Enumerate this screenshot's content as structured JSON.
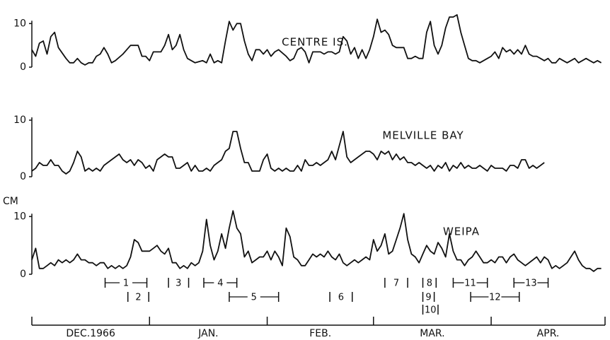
{
  "chart_data": [
    {
      "type": "line",
      "title": "CENTRE IS.",
      "xlim": [
        0,
        151
      ],
      "ylim": [
        0,
        12
      ],
      "yticks": [
        0,
        10
      ],
      "color": "#111",
      "x": [
        0,
        1,
        2,
        3,
        4,
        5,
        6,
        7,
        9,
        10,
        11,
        12,
        13,
        14,
        15,
        16,
        17,
        18,
        19,
        20,
        21,
        22,
        24,
        26,
        28,
        29,
        30,
        31,
        32,
        34,
        35,
        36,
        37,
        38,
        39,
        40,
        41,
        43,
        45,
        46,
        47,
        48,
        49,
        50,
        51,
        52,
        53,
        54,
        55,
        56,
        57,
        58,
        59,
        60,
        61,
        62,
        63,
        64,
        65,
        67,
        68,
        69,
        70,
        71,
        72,
        73,
        74,
        75,
        76,
        77,
        78,
        79,
        80,
        81,
        82,
        83,
        84,
        85,
        86,
        87,
        88,
        89,
        90,
        91,
        92,
        93,
        94,
        95,
        96,
        97,
        98,
        99,
        100,
        101,
        102,
        103,
        104,
        105,
        106,
        107,
        108,
        109,
        110,
        111,
        112,
        113,
        114,
        115,
        116,
        117,
        118,
        120,
        121,
        122,
        123,
        124,
        125,
        126,
        127,
        128,
        129,
        130,
        131,
        132,
        133,
        134,
        135,
        136,
        137,
        138,
        139,
        140,
        141,
        142,
        143,
        144,
        145,
        146,
        147,
        148,
        149,
        150
      ],
      "values": [
        4,
        2.5,
        5.5,
        6,
        3,
        7,
        8,
        4.5,
        2,
        1,
        1,
        2,
        1,
        0.5,
        1,
        1,
        2.5,
        3,
        4.5,
        3,
        1,
        1.5,
        3,
        5,
        5,
        2.5,
        2.5,
        1.5,
        3.5,
        3.5,
        5,
        7.5,
        4,
        5,
        7.5,
        4,
        2,
        1,
        1.5,
        1,
        3,
        1,
        1.5,
        1,
        6,
        10.5,
        8.5,
        10,
        10,
        6,
        3,
        1.5,
        4,
        4,
        3,
        4,
        2.5,
        3.5,
        4,
        2.5,
        1.5,
        2,
        4,
        4.5,
        3.5,
        1,
        3.5,
        3.5,
        3.5,
        3,
        3.5,
        3.5,
        3,
        3.5,
        7,
        6,
        3,
        4.5,
        2,
        4,
        2,
        4,
        7,
        11,
        8,
        8.5,
        7.5,
        5,
        4.5,
        4.5,
        4.5,
        2,
        2,
        2.5,
        2,
        2,
        8,
        10.5,
        5,
        3,
        5,
        9,
        11.5,
        11.5,
        12,
        8,
        5,
        2,
        1.5,
        1.5,
        1,
        2,
        2.5,
        3.5,
        2,
        4.5,
        3.5,
        4,
        3,
        4,
        3,
        5,
        3,
        2.5,
        2.5,
        2,
        1.5,
        2,
        1,
        1,
        2,
        1.5,
        1,
        1.5,
        2,
        1,
        1.5,
        2,
        1.5,
        1,
        1.5,
        1
      ]
    },
    {
      "type": "line",
      "title": "MELVILLE BAY",
      "xlim": [
        0,
        151
      ],
      "ylim": [
        0,
        12
      ],
      "yticks": [
        0,
        10
      ],
      "color": "#111",
      "x": [
        0,
        1,
        2,
        3,
        4,
        5,
        6,
        7,
        8,
        9,
        10,
        11,
        12,
        13,
        14,
        15,
        16,
        17,
        18,
        19,
        21,
        23,
        24,
        25,
        26,
        27,
        28,
        29,
        30,
        31,
        32,
        33,
        34,
        35,
        36,
        37,
        38,
        39,
        40,
        41,
        42,
        43,
        44,
        45,
        46,
        47,
        48,
        49,
        50,
        51,
        52,
        53,
        54,
        55,
        56,
        57,
        58,
        59,
        60,
        61,
        62,
        63,
        64,
        65,
        66,
        67,
        68,
        69,
        70,
        71,
        72,
        73,
        74,
        75,
        76,
        77,
        78,
        79,
        80,
        81,
        82,
        83,
        84,
        86,
        88,
        89,
        90,
        91,
        92,
        93,
        94,
        95,
        96,
        97,
        98,
        99,
        100,
        101,
        102,
        103,
        104,
        105,
        106,
        107,
        108,
        109,
        110,
        111,
        112,
        113,
        114,
        115,
        116,
        117,
        118,
        119,
        120,
        121,
        122,
        123,
        124,
        125,
        126,
        127,
        128,
        129,
        130,
        131,
        132,
        133,
        135
      ],
      "values": [
        1,
        1.5,
        2.5,
        2,
        2,
        3,
        2,
        2,
        1,
        0.5,
        1,
        2.5,
        4.5,
        3.5,
        1,
        1.5,
        1,
        1.5,
        1,
        2,
        3,
        4,
        3,
        2.5,
        3,
        2,
        3,
        2.5,
        1.5,
        2,
        1,
        3,
        3.5,
        4,
        3.5,
        3.5,
        1.5,
        1.5,
        2,
        2.5,
        1,
        2,
        1,
        1,
        1.5,
        1,
        2,
        2.5,
        3,
        4.5,
        5,
        8,
        8,
        5,
        2.5,
        2.5,
        1,
        1,
        1,
        3,
        4,
        1.5,
        1,
        1.5,
        1,
        1.5,
        1,
        1,
        2,
        1,
        3,
        2,
        2,
        2.5,
        2,
        2.5,
        3,
        4.5,
        3,
        5.5,
        8,
        3.5,
        2.5,
        3.5,
        4.5,
        4.5,
        4,
        3,
        4.5,
        4,
        4.5,
        3,
        4,
        3,
        3.5,
        2.5,
        2.5,
        2,
        2.5,
        2,
        1.5,
        2,
        1,
        2,
        1.5,
        2.5,
        1,
        2,
        1.5,
        2.5,
        1.5,
        2,
        1.5,
        1.5,
        2,
        1.5,
        1,
        2,
        1.5,
        1.5,
        1.5,
        1,
        2,
        2,
        1.5,
        3,
        3,
        1.5,
        2,
        1.5,
        2.5
      ]
    },
    {
      "type": "line",
      "title": "WEIPA",
      "ylabel": "CM",
      "xlim": [
        0,
        151
      ],
      "ylim": [
        0,
        12
      ],
      "yticks": [
        0,
        10
      ],
      "color": "#111",
      "xticks": [
        0,
        31,
        62,
        90,
        121,
        151
      ],
      "month_labels": [
        "DEC.1966",
        "JAN.",
        "FEB.",
        "MAR.",
        "APR."
      ],
      "periods": [
        {
          "label": "1",
          "start": 19.3,
          "end": 30.3
        },
        {
          "label": "2",
          "start": 25.3,
          "end": 30.8
        },
        {
          "label": "3",
          "start": 36,
          "end": 41.3
        },
        {
          "label": "4",
          "start": 45.3,
          "end": 54
        },
        {
          "label": "5",
          "start": 52,
          "end": 65
        },
        {
          "label": "6",
          "start": 78.5,
          "end": 84.4
        },
        {
          "label": "7",
          "start": 93,
          "end": 99
        },
        {
          "label": "8",
          "start": 103,
          "end": 106.5
        },
        {
          "label": "9",
          "start": 103,
          "end": 106
        },
        {
          "label": "10",
          "start": 103,
          "end": 107
        },
        {
          "label": "11",
          "start": 111,
          "end": 120
        },
        {
          "label": "12",
          "start": 115.6,
          "end": 128.4
        },
        {
          "label": "13",
          "start": 127,
          "end": 136
        }
      ],
      "x": [
        0,
        1,
        2,
        3,
        4,
        5,
        6,
        7,
        8,
        9,
        10,
        11,
        12,
        13,
        14,
        15,
        16,
        17,
        18,
        19,
        20,
        21,
        22,
        23,
        24,
        25,
        26,
        27,
        28,
        29,
        30,
        31,
        32,
        33,
        34,
        35,
        36,
        37,
        38,
        39,
        40,
        41,
        42,
        43,
        44,
        45,
        46,
        47,
        48,
        49,
        50,
        51,
        52,
        53,
        54,
        55,
        56,
        57,
        58,
        59,
        60,
        61,
        62,
        63,
        64,
        65,
        66,
        67,
        68,
        69,
        70,
        71,
        72,
        73,
        74,
        75,
        76,
        77,
        78,
        79,
        80,
        81,
        82,
        83,
        84,
        85,
        86,
        87,
        88,
        89,
        90,
        91,
        92,
        93,
        94,
        95,
        96,
        97,
        98,
        99,
        100,
        101,
        102,
        103,
        104,
        105,
        106,
        107,
        108,
        109,
        110,
        111,
        112,
        113,
        114,
        115,
        116,
        117,
        118,
        119,
        120,
        121,
        122,
        123,
        124,
        125,
        126,
        127,
        128,
        129,
        130,
        132,
        133,
        134,
        135,
        136,
        137,
        138,
        139,
        140,
        141,
        142,
        143,
        144,
        145,
        146,
        147,
        148,
        149,
        150
      ],
      "values": [
        2.5,
        4.5,
        1,
        1,
        1.5,
        2,
        1.5,
        2.5,
        2,
        2.5,
        2,
        2.5,
        3.5,
        2.5,
        2.5,
        2,
        2,
        1.5,
        2,
        2,
        1,
        1.5,
        1,
        1.5,
        1,
        1.5,
        3,
        6,
        5.5,
        4,
        4,
        4,
        4.5,
        5,
        4,
        3.5,
        4.5,
        2,
        2,
        1,
        1.5,
        1,
        2,
        1.5,
        2,
        4,
        9.5,
        5,
        2.5,
        4,
        7,
        4.5,
        8,
        11,
        8,
        7,
        3,
        4,
        2,
        2.5,
        3,
        3,
        4,
        2.5,
        4,
        3,
        1.5,
        8,
        6.5,
        3,
        2.5,
        1.5,
        1.5,
        2.5,
        3.5,
        3,
        3.5,
        3,
        4,
        3,
        2.5,
        3.5,
        2,
        1.5,
        2,
        2.5,
        2,
        2.5,
        3,
        2.5,
        6,
        4,
        5,
        7,
        3.5,
        4,
        6,
        8,
        10.5,
        6,
        3.5,
        3,
        2,
        3.5,
        5,
        4,
        3.5,
        5.5,
        4.5,
        3,
        7,
        4,
        2.5,
        2.5,
        1.5,
        2.5,
        3,
        4,
        3,
        2,
        2,
        2.5,
        2,
        3,
        3,
        2,
        3,
        3.5,
        2.5,
        2,
        1.5,
        2.5,
        3,
        2,
        3,
        2.5,
        1,
        1.5,
        1,
        1.5,
        2,
        3,
        4,
        2.5,
        1.5,
        1,
        1,
        0.5,
        1,
        1
      ]
    }
  ]
}
